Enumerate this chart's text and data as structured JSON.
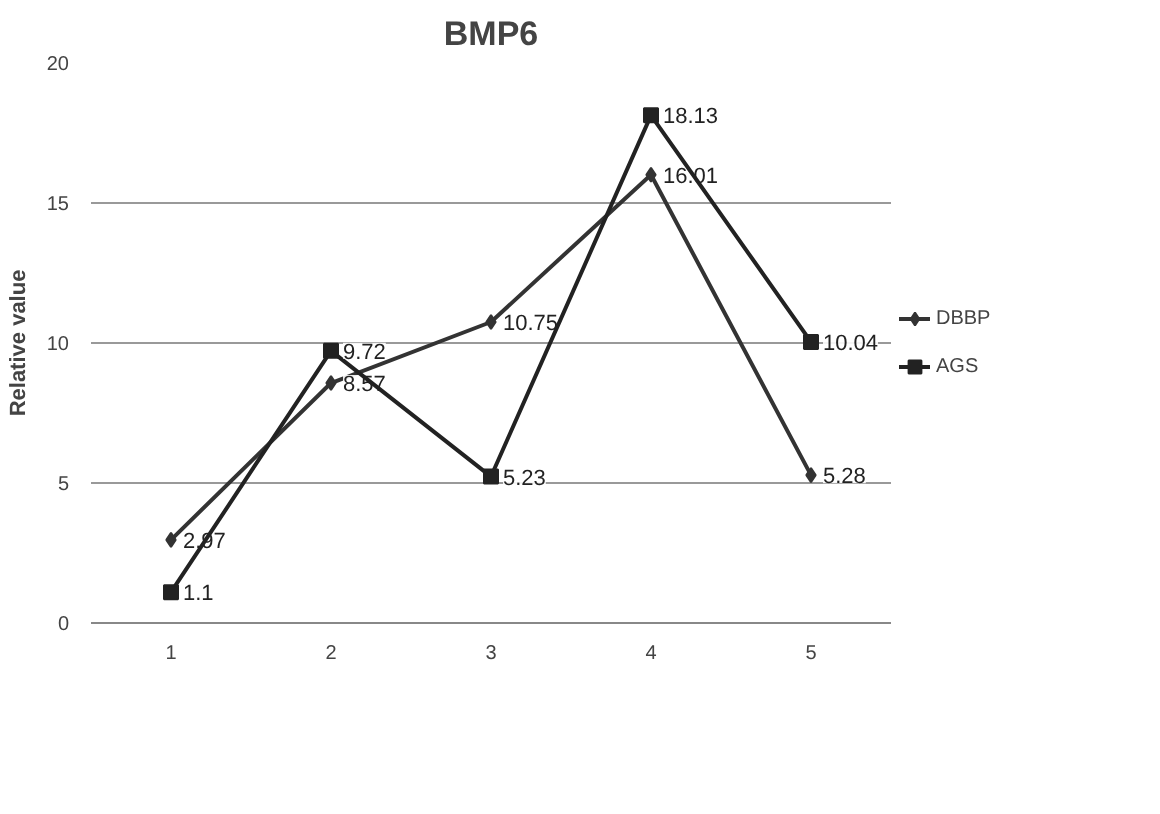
{
  "chart_data": {
    "type": "line",
    "title": "BMP6",
    "ylabel": "Relative value",
    "categories": [
      "1",
      "2",
      "3",
      "4",
      "5"
    ],
    "ylim": [
      0,
      20
    ],
    "yticks": [
      0,
      5,
      10,
      15,
      20
    ],
    "grid": "y",
    "legend": "right",
    "data_labels": true,
    "series": [
      {
        "name": "DBBP",
        "color": "#333333",
        "marker": "diamond",
        "values": [
          2.97,
          8.57,
          10.75,
          16.01,
          5.28
        ]
      },
      {
        "name": "AGS",
        "color": "#222222",
        "marker": "square",
        "values": [
          1.1,
          9.72,
          5.23,
          18.13,
          10.04
        ]
      }
    ]
  }
}
